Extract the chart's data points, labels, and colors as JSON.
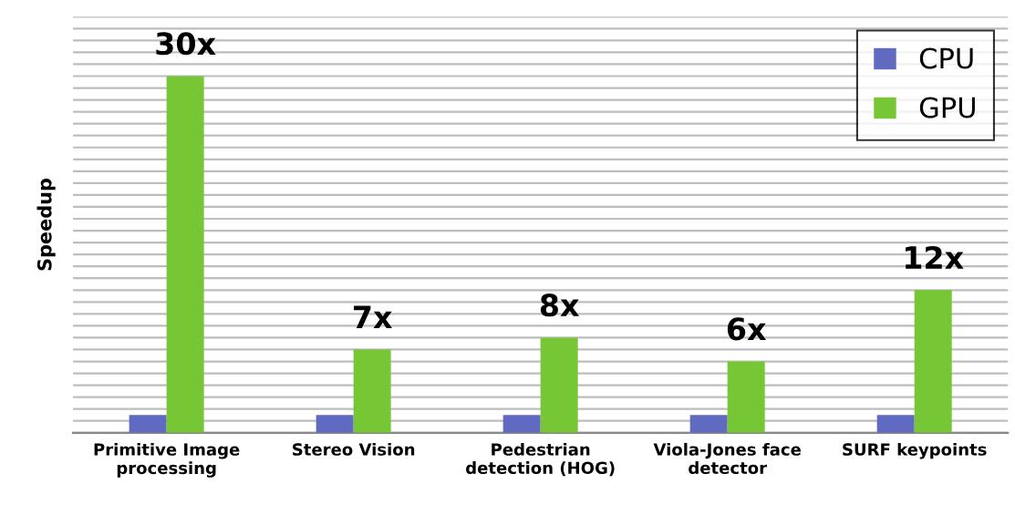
{
  "chart_data": {
    "type": "bar",
    "ylabel": "Speedup",
    "categories": [
      "Primitive Image\nprocessing",
      "Stereo Vision",
      "Pedestrian\ndetection (HOG)",
      "Viola-Jones face\ndetector",
      "SURF keypoints"
    ],
    "series": [
      {
        "name": "CPU",
        "color": "#5f6ac0",
        "values": [
          1.5,
          1.5,
          1.5,
          1.5,
          1.5
        ]
      },
      {
        "name": "GPU",
        "color": "#77c636",
        "values": [
          30,
          7,
          8,
          6,
          12
        ],
        "value_labels": [
          "30x",
          "7x",
          "8x",
          "6x",
          "12x"
        ]
      }
    ],
    "ylim": [
      0,
      35
    ],
    "yticks": [
      {
        "value": 0,
        "label": null
      },
      {
        "value": 1,
        "label": null
      },
      {
        "value": 2,
        "label": null
      },
      {
        "value": 3,
        "label": null
      },
      {
        "value": 4,
        "label": null
      },
      {
        "value": 5,
        "label": null
      },
      {
        "value": 6,
        "label": null
      },
      {
        "value": 7,
        "label": null
      },
      {
        "value": 8,
        "label": null
      },
      {
        "value": 9,
        "label": null
      },
      {
        "value": 10,
        "label": null
      },
      {
        "value": 11,
        "label": null
      },
      {
        "value": 12,
        "label": null
      },
      {
        "value": 13,
        "label": null
      },
      {
        "value": 14,
        "label": null
      },
      {
        "value": 15,
        "label": null
      },
      {
        "value": 16,
        "label": null
      },
      {
        "value": 17,
        "label": null
      },
      {
        "value": 18,
        "label": null
      },
      {
        "value": 19,
        "label": null
      },
      {
        "value": 20,
        "label": null
      },
      {
        "value": 21,
        "label": null
      },
      {
        "value": 22,
        "label": null
      },
      {
        "value": 23,
        "label": null
      },
      {
        "value": 24,
        "label": null
      },
      {
        "value": 25,
        "label": null
      },
      {
        "value": 26,
        "label": null
      },
      {
        "value": 27,
        "label": null
      },
      {
        "value": 28,
        "label": null
      },
      {
        "value": 29,
        "label": null
      },
      {
        "value": 30,
        "label": null
      },
      {
        "value": 31,
        "label": null
      },
      {
        "value": 32,
        "label": null
      },
      {
        "value": 33,
        "label": null
      },
      {
        "value": 34,
        "label": null
      },
      {
        "value": 35,
        "label": null
      }
    ],
    "tick_labels": "x",
    "grid": "y",
    "legend": "top right"
  }
}
